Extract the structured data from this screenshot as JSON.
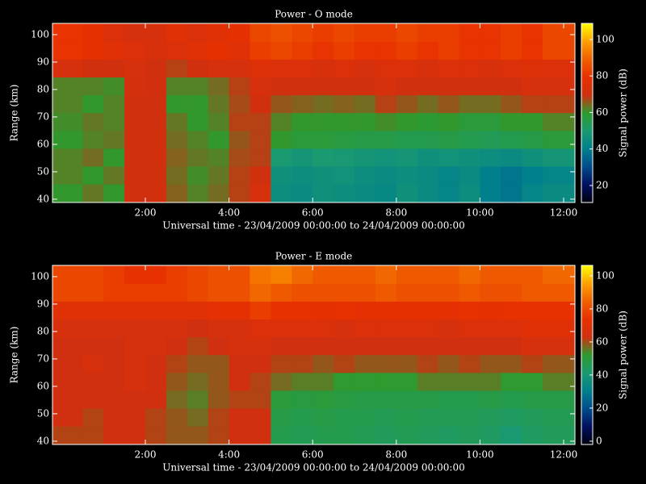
{
  "chart_data": [
    {
      "type": "heatmap",
      "title": "Power - O mode",
      "xlabel": "Universal time - 23/04/2009 00:00:00 to 24/04/2009 00:00:00",
      "ylabel": "Range (km)",
      "colorbar_label": "Signal power (dB)",
      "xbins": [
        -0.22,
        0.5,
        1,
        1.5,
        2,
        2.5,
        3,
        3.5,
        4,
        4.5,
        5,
        5.5,
        6,
        6.5,
        7,
        7.5,
        8,
        8.5,
        9,
        9.5,
        10,
        10.5,
        11,
        11.5,
        12.27
      ],
      "ybins": [
        38.8,
        45.5,
        52,
        58.5,
        65,
        71.5,
        78,
        84.5,
        91,
        97.5,
        104.1
      ],
      "z": [
        [
          60,
          63,
          60,
          70,
          70,
          65,
          62,
          64,
          68,
          72,
          45,
          44,
          46,
          45,
          44,
          43,
          46,
          44,
          42,
          45,
          40,
          38,
          42,
          44
        ],
        [
          62,
          60,
          63,
          70,
          70,
          64,
          61,
          63,
          68,
          70,
          46,
          45,
          46,
          47,
          45,
          44,
          45,
          44,
          42,
          44,
          40,
          38,
          40,
          42
        ],
        [
          62,
          64,
          60,
          70,
          70,
          65,
          63,
          62,
          67,
          68,
          50,
          48,
          50,
          49,
          48,
          47,
          48,
          46,
          47,
          46,
          45,
          44,
          46,
          48
        ],
        [
          60,
          62,
          63,
          70,
          70,
          64,
          62,
          60,
          66,
          68,
          60,
          58,
          58,
          57,
          56,
          56,
          55,
          55,
          56,
          55,
          54,
          55,
          56,
          58
        ],
        [
          61,
          63,
          62,
          70,
          70,
          63,
          60,
          62,
          68,
          68,
          62,
          60,
          60,
          60,
          60,
          61,
          60,
          59,
          60,
          58,
          58,
          60,
          60,
          62
        ],
        [
          62,
          60,
          62,
          70,
          70,
          60,
          60,
          63,
          67,
          70,
          66,
          65,
          64,
          65,
          64,
          68,
          66,
          64,
          66,
          64,
          64,
          66,
          68,
          68
        ],
        [
          62,
          62,
          61,
          71,
          70,
          62,
          62,
          64,
          68,
          72,
          70,
          70,
          70,
          70,
          70,
          72,
          70,
          70,
          70,
          70,
          70,
          70,
          72,
          72
        ],
        [
          72,
          70,
          70,
          72,
          70,
          68,
          70,
          72,
          72,
          75,
          74,
          74,
          72,
          74,
          72,
          74,
          74,
          72,
          74,
          74,
          72,
          74,
          75,
          74
        ],
        [
          80,
          78,
          76,
          74,
          72,
          74,
          76,
          78,
          76,
          82,
          84,
          82,
          80,
          82,
          80,
          80,
          82,
          80,
          82,
          80,
          80,
          82,
          80,
          84
        ],
        [
          80,
          78,
          74,
          72,
          72,
          76,
          74,
          76,
          78,
          84,
          86,
          84,
          82,
          84,
          82,
          82,
          84,
          82,
          82,
          80,
          80,
          82,
          80,
          84
        ]
      ],
      "xlim": [
        -0.22,
        12.27
      ],
      "ylim": [
        38.8,
        104.1
      ],
      "zlim": [
        10.7,
        108.8
      ],
      "xticks": [
        {
          "value": 2,
          "label": "2:00"
        },
        {
          "value": 4,
          "label": "4:00"
        },
        {
          "value": 6,
          "label": "6:00"
        },
        {
          "value": 8,
          "label": "8:00"
        },
        {
          "value": 10,
          "label": "10:00"
        },
        {
          "value": 12,
          "label": "12:00"
        }
      ],
      "yticks": [
        40,
        50,
        60,
        70,
        80,
        90,
        100
      ],
      "zticks": [
        20,
        40,
        60,
        80,
        100
      ],
      "colormap": [
        "#000010",
        "#001060",
        "#004c8c",
        "#00808c",
        "#1a9a70",
        "#2e9a2e",
        "#d03010",
        "#e83000",
        "#f06000",
        "#ffa000",
        "#ffff00"
      ]
    },
    {
      "type": "heatmap",
      "title": "Power - E mode",
      "xlabel": "Universal time - 23/04/2009 00:00:00 to 24/04/2009 00:00:00",
      "ylabel": "Range (km)",
      "colorbar_label": "Signal power (dB)",
      "xbins": [
        -0.22,
        0.5,
        1,
        1.5,
        2,
        2.5,
        3,
        3.5,
        4,
        4.5,
        5,
        5.5,
        6,
        6.5,
        7,
        7.5,
        8,
        8.5,
        9,
        9.5,
        10,
        10.5,
        11,
        11.5,
        12.27
      ],
      "ybins": [
        38.8,
        45.5,
        52,
        58.5,
        65,
        71.5,
        78,
        84.5,
        91,
        97.5,
        104.1
      ],
      "z": [
        [
          61,
          61,
          63,
          63,
          61,
          59,
          59,
          61,
          63,
          63,
          47,
          46,
          47,
          47,
          46,
          45,
          46,
          45,
          44,
          45,
          44,
          41,
          44,
          45
        ],
        [
          63,
          61,
          63,
          63,
          61,
          59,
          57,
          61,
          63,
          63,
          48,
          47,
          48,
          47,
          47,
          46,
          47,
          46,
          46,
          46,
          45,
          44,
          45,
          46
        ],
        [
          63,
          63,
          63,
          63,
          63,
          57,
          55,
          59,
          61,
          61,
          50,
          49,
          50,
          49,
          48,
          48,
          48,
          48,
          47,
          47,
          48,
          47,
          48,
          48
        ],
        [
          63,
          63,
          63,
          66,
          63,
          59,
          57,
          59,
          63,
          61,
          57,
          55,
          55,
          52,
          52,
          52,
          52,
          55,
          55,
          55,
          55,
          52,
          52,
          55
        ],
        [
          63,
          66,
          63,
          66,
          63,
          61,
          59,
          59,
          63,
          63,
          61,
          61,
          59,
          61,
          59,
          59,
          59,
          61,
          59,
          61,
          59,
          59,
          61,
          59
        ],
        [
          63,
          63,
          63,
          66,
          66,
          63,
          61,
          63,
          66,
          66,
          63,
          63,
          63,
          63,
          63,
          63,
          63,
          63,
          63,
          63,
          63,
          63,
          66,
          66
        ],
        [
          66,
          66,
          66,
          66,
          66,
          66,
          63,
          66,
          66,
          68,
          68,
          68,
          68,
          66,
          68,
          68,
          68,
          68,
          66,
          68,
          68,
          68,
          70,
          70
        ],
        [
          70,
          70,
          70,
          70,
          70,
          70,
          70,
          72,
          72,
          77,
          74,
          74,
          72,
          74,
          72,
          72,
          72,
          72,
          72,
          74,
          72,
          74,
          74,
          74
        ],
        [
          79,
          79,
          77,
          77,
          77,
          77,
          79,
          81,
          81,
          86,
          83,
          81,
          81,
          81,
          81,
          83,
          81,
          81,
          81,
          83,
          81,
          81,
          83,
          83
        ],
        [
          79,
          79,
          77,
          74,
          74,
          77,
          79,
          81,
          81,
          88,
          90,
          86,
          83,
          83,
          83,
          86,
          83,
          83,
          83,
          86,
          83,
          83,
          83,
          86
        ]
      ],
      "xlim": [
        -0.22,
        12.27
      ],
      "ylim": [
        38.8,
        104.1
      ],
      "zlim": [
        -2,
        106.3
      ],
      "xticks": [
        {
          "value": 2,
          "label": "2:00"
        },
        {
          "value": 4,
          "label": "4:00"
        },
        {
          "value": 6,
          "label": "6:00"
        },
        {
          "value": 8,
          "label": "8:00"
        },
        {
          "value": 10,
          "label": "10:00"
        },
        {
          "value": 12,
          "label": "12:00"
        }
      ],
      "yticks": [
        40,
        50,
        60,
        70,
        80,
        90,
        100
      ],
      "zticks": [
        0,
        20,
        40,
        60,
        80,
        100
      ],
      "colormap": [
        "#000010",
        "#001060",
        "#004c8c",
        "#00808c",
        "#1a9a70",
        "#2e9a2e",
        "#d03010",
        "#e83000",
        "#f06000",
        "#ffa000",
        "#ffff00"
      ]
    }
  ]
}
